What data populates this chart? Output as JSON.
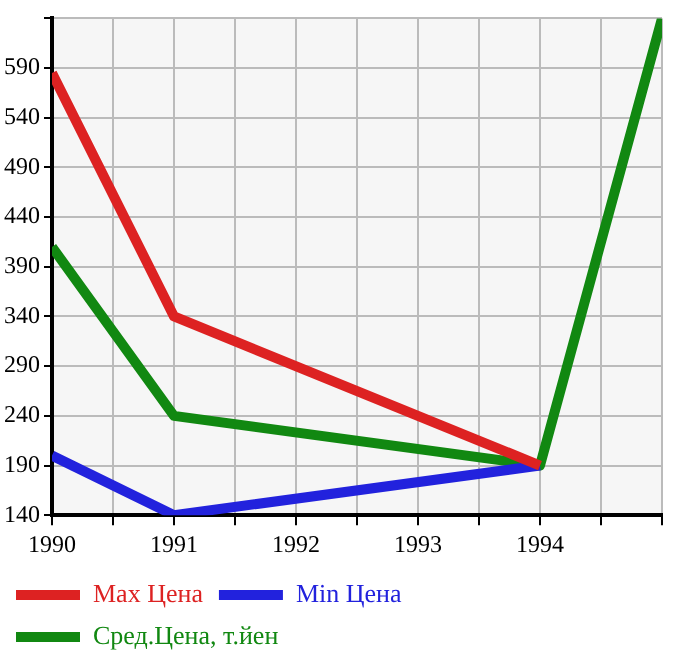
{
  "chart_data": {
    "type": "line",
    "x": [
      1990,
      1991,
      1994,
      1995
    ],
    "series": [
      {
        "name": "Max Цена",
        "color": "#dd2222",
        "values": [
          585,
          340,
          190,
          null
        ]
      },
      {
        "name": "Min Цена",
        "color": "#2222dd",
        "values": [
          200,
          140,
          190,
          null
        ]
      },
      {
        "name": "Сред.Цена, т.йен",
        "color": "#118811",
        "values": [
          410,
          240,
          190,
          640
        ]
      }
    ],
    "xlim": [
      1990,
      1995
    ],
    "xticks": [
      1990,
      {
        "value": 1990.5,
        "label": null
      },
      1991,
      {
        "value": 1991.5,
        "label": null
      },
      1992,
      {
        "value": 1992.5,
        "label": null
      },
      1993,
      {
        "value": 1993.5,
        "label": null
      },
      1994,
      {
        "value": 1994.5,
        "label": null
      },
      {
        "value": 1995,
        "label": null
      }
    ],
    "ylim": [
      140,
      640
    ],
    "yticks": [
      140,
      190,
      240,
      290,
      340,
      390,
      440,
      490,
      540,
      590,
      {
        "value": 640,
        "label": null
      }
    ],
    "grid": true,
    "legend": "bottom",
    "marker": "none",
    "line_style": "solid"
  }
}
